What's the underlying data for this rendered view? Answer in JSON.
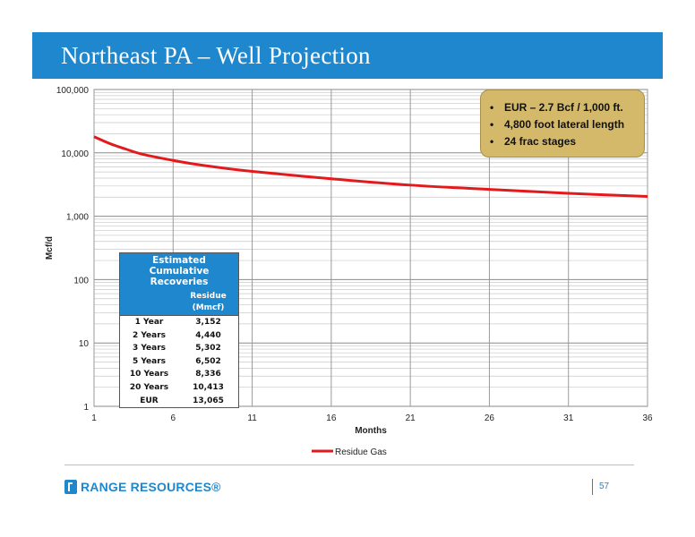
{
  "slide": {
    "title": "Northeast PA – Well Projection",
    "page_number": "57",
    "logo_text": "RANGE RESOURCES®",
    "accent_color": "#1f87cd"
  },
  "callout": {
    "bullets": [
      "EUR – 2.7 Bcf / 1,000 ft.",
      "4,800 foot lateral length",
      "24 frac stages"
    ],
    "background_color": "#d4b96a"
  },
  "cumulative_table": {
    "title": "Estimated Cumulative Recoveries",
    "column_header": "Residue (Mmcf)",
    "rows": [
      {
        "label": "1 Year",
        "value": "3,152"
      },
      {
        "label": "2 Years",
        "value": "4,440"
      },
      {
        "label": "3 Years",
        "value": "5,302"
      },
      {
        "label": "5 Years",
        "value": "6,502"
      },
      {
        "label": "10 Years",
        "value": "8,336"
      },
      {
        "label": "20 Years",
        "value": "10,413"
      },
      {
        "label": "EUR",
        "value": "13,065"
      }
    ]
  },
  "chart_data": {
    "type": "line",
    "title": "",
    "xlabel": "Months",
    "ylabel": "Mcf/d",
    "y_scale": "log",
    "xlim": [
      1,
      36
    ],
    "ylim": [
      1,
      100000
    ],
    "x_ticks": [
      1,
      6,
      11,
      16,
      21,
      26,
      31,
      36
    ],
    "y_ticks": [
      1,
      10,
      100,
      1000,
      10000,
      100000
    ],
    "y_tick_labels": [
      "1",
      "10",
      "100",
      "1,000",
      "10,000",
      "100,000"
    ],
    "grid": true,
    "legend_position": "bottom",
    "series": [
      {
        "name": "Residue Gas",
        "color": "#e31a1c",
        "x": [
          1,
          2,
          3,
          4,
          6,
          8,
          11,
          16,
          21,
          26,
          31,
          36
        ],
        "y": [
          18000,
          14000,
          11500,
          9600,
          7600,
          6300,
          5100,
          3900,
          3100,
          2650,
          2300,
          2050
        ]
      }
    ]
  }
}
